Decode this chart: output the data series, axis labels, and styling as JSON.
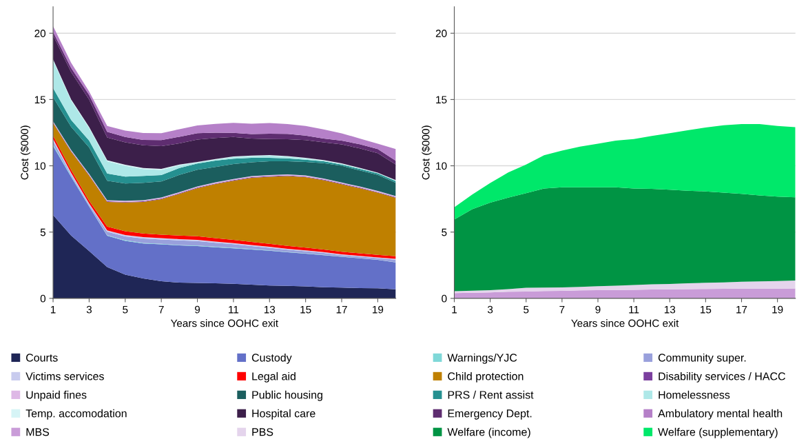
{
  "chart_data": [
    {
      "type": "area",
      "stacked": true,
      "xlabel": "Years since OOHC exit",
      "ylabel": "Cost ($000)",
      "x": [
        1,
        2,
        3,
        4,
        5,
        6,
        7,
        8,
        9,
        10,
        11,
        12,
        13,
        14,
        15,
        16,
        17,
        18,
        19,
        20
      ],
      "xlim": [
        1,
        20
      ],
      "xticks": [
        1,
        3,
        5,
        7,
        9,
        11,
        13,
        15,
        17,
        19
      ],
      "ylim": [
        0,
        22
      ],
      "yticks": [
        0,
        5,
        10,
        15,
        20
      ],
      "grid": "y",
      "legend": "bottom",
      "series": [
        {
          "name": "Courts",
          "color": "#1f2656",
          "values": [
            6.28,
            4.74,
            3.57,
            2.36,
            1.79,
            1.5,
            1.29,
            1.19,
            1.16,
            1.14,
            1.1,
            1.03,
            0.97,
            0.95,
            0.9,
            0.84,
            0.81,
            0.78,
            0.76,
            0.69
          ]
        },
        {
          "name": "Custody",
          "color": "#6370c8",
          "values": [
            5.22,
            4.43,
            3.36,
            2.36,
            2.55,
            2.64,
            2.78,
            2.81,
            2.79,
            2.72,
            2.68,
            2.66,
            2.63,
            2.53,
            2.48,
            2.42,
            2.33,
            2.24,
            2.14,
            2.02
          ]
        },
        {
          "name": "Warnings/YJC",
          "color": "#7fd8d8",
          "values": [
            0.1,
            0.08,
            0.05,
            0.05,
            0.05,
            0.04,
            0.04,
            0.03,
            0.03,
            0.03,
            0.03,
            0.03,
            0.02,
            0.02,
            0.02,
            0.02,
            0.02,
            0.02,
            0.02,
            0.02
          ]
        },
        {
          "name": "Community super.",
          "color": "#99a0dc",
          "values": [
            0.28,
            0.1,
            0.1,
            0.26,
            0.29,
            0.34,
            0.33,
            0.34,
            0.34,
            0.3,
            0.28,
            0.22,
            0.19,
            0.17,
            0.15,
            0.14,
            0.1,
            0.11,
            0.11,
            0.19
          ]
        },
        {
          "name": "Victims services",
          "color": "#c8cbee",
          "values": [
            0.15,
            0.12,
            0.08,
            0.1,
            0.1,
            0.1,
            0.1,
            0.1,
            0.1,
            0.1,
            0.08,
            0.08,
            0.08,
            0.07,
            0.07,
            0.07,
            0.06,
            0.06,
            0.06,
            0.06
          ]
        },
        {
          "name": "Legal aid",
          "color": "#ff0000",
          "values": [
            0.25,
            0.22,
            0.2,
            0.28,
            0.28,
            0.28,
            0.27,
            0.27,
            0.27,
            0.26,
            0.25,
            0.24,
            0.23,
            0.22,
            0.21,
            0.2,
            0.2,
            0.19,
            0.19,
            0.2
          ]
        },
        {
          "name": "Child protection",
          "color": "#bf8000",
          "values": [
            0.95,
            1.38,
            1.9,
            1.86,
            2.17,
            2.38,
            2.67,
            3.14,
            3.62,
            4.07,
            4.45,
            4.83,
            5.05,
            5.26,
            5.31,
            5.22,
            5.09,
            4.91,
            4.69,
            4.41
          ]
        },
        {
          "name": "Disability services / HACC",
          "color": "#7b3f9e",
          "values": [
            0.05,
            0.05,
            0.05,
            0.05,
            0.05,
            0.05,
            0.05,
            0.05,
            0.05,
            0.05,
            0.05,
            0.05,
            0.05,
            0.05,
            0.05,
            0.05,
            0.05,
            0.05,
            0.05,
            0.05
          ]
        },
        {
          "name": "Unpaid fines",
          "color": "#deb8e6",
          "values": [
            0.08,
            0.08,
            0.08,
            0.08,
            0.08,
            0.08,
            0.08,
            0.08,
            0.08,
            0.08,
            0.08,
            0.08,
            0.08,
            0.08,
            0.08,
            0.08,
            0.08,
            0.08,
            0.08,
            0.08
          ]
        },
        {
          "name": "Public housing",
          "color": "#1b5e5e",
          "values": [
            1.82,
            1.74,
            1.99,
            1.47,
            1.3,
            1.3,
            1.21,
            1.3,
            1.26,
            1.16,
            1.13,
            1.04,
            1.04,
            0.99,
            1.02,
            1.16,
            1.26,
            1.21,
            1.21,
            0.99
          ]
        },
        {
          "name": "PRS / Rent assist",
          "color": "#259090",
          "values": [
            0.69,
            0.52,
            0.52,
            0.55,
            0.52,
            0.52,
            0.48,
            0.52,
            0.47,
            0.48,
            0.4,
            0.34,
            0.26,
            0.22,
            0.17,
            0.14,
            0.09,
            0.12,
            0.12,
            0.14
          ]
        },
        {
          "name": "Homelessness",
          "color": "#aee8e8",
          "values": [
            2.08,
            1.47,
            0.95,
            0.92,
            0.82,
            0.52,
            0.39,
            0.2,
            0.08,
            0.08,
            0.13,
            0.13,
            0.17,
            0.13,
            0.1,
            0.05,
            0.05,
            0.05,
            0.03,
            0.05
          ]
        },
        {
          "name": "Temp. accomodation",
          "color": "#d6f4f6",
          "values": [
            0.08,
            0.08,
            0.08,
            0.08,
            0.08,
            0.08,
            0.08,
            0.06,
            0.04,
            0.04,
            0.04,
            0.04,
            0.04,
            0.04,
            0.04,
            0.04,
            0.04,
            0.03,
            0.02,
            0.02
          ]
        },
        {
          "name": "Hospital care",
          "color": "#3c1f4a",
          "values": [
            1.81,
            2.07,
            2.07,
            1.72,
            1.69,
            1.72,
            1.72,
            1.6,
            1.69,
            1.59,
            1.47,
            1.29,
            1.21,
            1.28,
            1.34,
            1.34,
            1.43,
            1.47,
            1.47,
            1.17
          ]
        },
        {
          "name": "Emergency Dept.",
          "color": "#5e2d70",
          "values": [
            0.26,
            0.31,
            0.34,
            0.43,
            0.41,
            0.4,
            0.45,
            0.5,
            0.48,
            0.4,
            0.31,
            0.34,
            0.4,
            0.4,
            0.34,
            0.29,
            0.29,
            0.31,
            0.31,
            0.29
          ]
        },
        {
          "name": "Ambulatory mental health",
          "color": "#b580c8",
          "values": [
            0.43,
            0.38,
            0.26,
            0.43,
            0.48,
            0.52,
            0.52,
            0.57,
            0.59,
            0.66,
            0.76,
            0.78,
            0.81,
            0.74,
            0.72,
            0.69,
            0.55,
            0.43,
            0.41,
            0.88
          ]
        }
      ]
    },
    {
      "type": "area",
      "stacked": true,
      "xlabel": "Years since OOHC exit",
      "ylabel": "Cost ($000)",
      "x": [
        1,
        2,
        3,
        4,
        5,
        6,
        7,
        8,
        9,
        10,
        11,
        12,
        13,
        14,
        15,
        16,
        17,
        18,
        19,
        20
      ],
      "xlim": [
        1,
        20
      ],
      "xticks": [
        1,
        3,
        5,
        7,
        9,
        11,
        13,
        15,
        17,
        19
      ],
      "ylim": [
        0,
        22
      ],
      "yticks": [
        0,
        5,
        10,
        15,
        20
      ],
      "grid": "y",
      "legend": "bottom",
      "series": [
        {
          "name": "MBS",
          "color": "#c99cd8",
          "values": [
            0.4,
            0.42,
            0.45,
            0.5,
            0.52,
            0.55,
            0.57,
            0.6,
            0.62,
            0.63,
            0.65,
            0.67,
            0.68,
            0.7,
            0.71,
            0.72,
            0.73,
            0.74,
            0.74,
            0.75
          ]
        },
        {
          "name": "PBS",
          "color": "#e4d4ec",
          "values": [
            0.14,
            0.16,
            0.17,
            0.2,
            0.28,
            0.27,
            0.26,
            0.27,
            0.3,
            0.33,
            0.36,
            0.39,
            0.41,
            0.44,
            0.47,
            0.49,
            0.52,
            0.54,
            0.57,
            0.6
          ]
        },
        {
          "name": "Welfare (income)",
          "color": "#009444",
          "values": [
            5.41,
            6.15,
            6.6,
            6.9,
            7.14,
            7.47,
            7.55,
            7.51,
            7.46,
            7.42,
            7.28,
            7.2,
            7.11,
            6.98,
            6.89,
            6.77,
            6.64,
            6.49,
            6.37,
            6.28
          ]
        },
        {
          "name": "Welfare (supplementary)",
          "color": "#00e86a",
          "values": [
            0.92,
            1.1,
            1.48,
            1.89,
            2.16,
            2.51,
            2.77,
            3.07,
            3.29,
            3.52,
            3.73,
            3.99,
            4.26,
            4.56,
            4.82,
            5.08,
            5.26,
            5.38,
            5.33,
            5.29
          ]
        }
      ]
    }
  ]
}
